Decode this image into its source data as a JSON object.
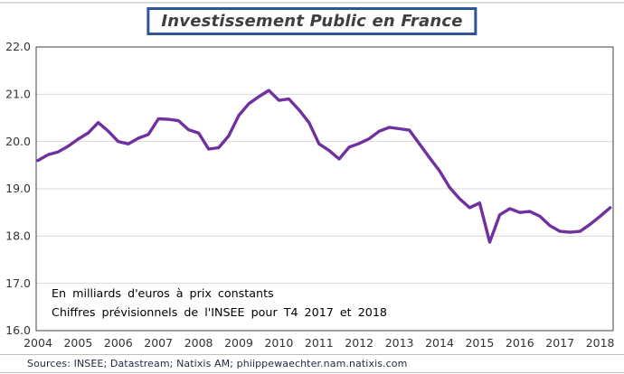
{
  "header": {
    "title": "Investissement Public en France"
  },
  "footer": {
    "sources": "Sources: INSEE; Datastream; Natixis AM; phiippewaechter.nam.natixis.com"
  },
  "colors": {
    "line": "#7030A0",
    "title_border": "#2f5597",
    "grid": "#d9d9d9",
    "axis_frame": "#404040"
  },
  "chart_data": {
    "type": "line",
    "title": "Investissement Public en France",
    "notes": [
      "En milliards d'euros à prix constants",
      "Chiffres prévisionnels de l'INSEE pour T4 2017 et 2018"
    ],
    "xlabel": "",
    "ylabel": "",
    "ylim": [
      16.0,
      22.0
    ],
    "grid": "horizontal",
    "legend": "none",
    "frequency": "quarterly",
    "x_start": "2004-Q1",
    "x_end": "2018-Q2",
    "x_tick_labels": [
      "2004",
      "2005",
      "2006",
      "2007",
      "2008",
      "2009",
      "2010",
      "2011",
      "2012",
      "2013",
      "2014",
      "2015",
      "2016",
      "2017",
      "2018"
    ],
    "y_tick_labels": [
      "22.0",
      "21.0",
      "20.0",
      "19.0",
      "18.0",
      "17.0",
      "16.0"
    ],
    "series": [
      {
        "name": "Investissement public (milliards d'euros, prix constants)",
        "color": "#7030A0",
        "values": [
          19.6,
          19.72,
          19.78,
          19.9,
          20.05,
          20.18,
          20.4,
          20.22,
          20.0,
          19.95,
          20.07,
          20.15,
          20.48,
          20.47,
          20.44,
          20.25,
          20.18,
          19.84,
          19.87,
          20.12,
          20.55,
          20.8,
          20.95,
          21.08,
          20.87,
          20.9,
          20.67,
          20.4,
          19.95,
          19.81,
          19.63,
          19.88,
          19.96,
          20.06,
          20.22,
          20.3,
          20.27,
          20.24,
          19.95,
          19.66,
          19.38,
          19.03,
          18.79,
          18.6,
          18.7,
          17.87,
          18.45,
          18.58,
          18.5,
          18.52,
          18.42,
          18.22,
          18.1,
          18.08,
          18.1,
          18.25,
          18.42,
          18.6
        ]
      }
    ]
  }
}
